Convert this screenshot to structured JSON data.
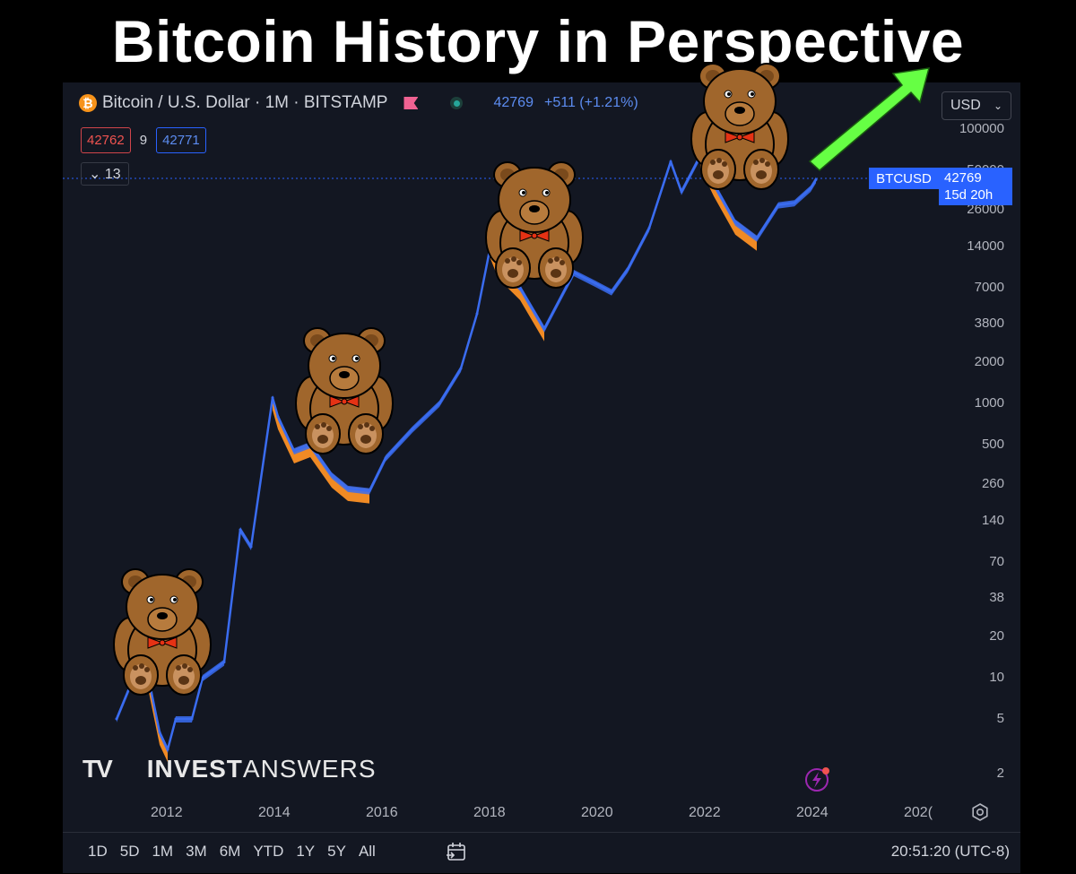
{
  "headline": "Bitcoin History in Perspective",
  "legend": {
    "icon_char": "₿",
    "symbol_name": "Bitcoin / U.S. Dollar · 1M · BITSTAMP",
    "last_price": "42769",
    "change": "+511 (+1.21%)"
  },
  "bid": "42762",
  "spread": "9",
  "ask": "42771",
  "indicators_toggle": "13",
  "currency": "USD",
  "last_label": {
    "symbol": "BTCUSD",
    "price": "42769",
    "countdown": "15d 20h"
  },
  "watermark": {
    "bold": "INVEST",
    "regular": "ANSWERS",
    "logo": "TV"
  },
  "ranges": [
    "1D",
    "5D",
    "1M",
    "3M",
    "6M",
    "YTD",
    "1Y",
    "5Y",
    "All"
  ],
  "clock": "20:51:20 (UTC-8)",
  "colors": {
    "line": "#3a6cf0",
    "bear_fill": "#f08a24",
    "arrow": "#66ff44",
    "panel": "#131722"
  },
  "chart_data": {
    "type": "line",
    "title": "Bitcoin History in Perspective",
    "scale": "log",
    "grid": false,
    "xlabel": "",
    "ylabel": "",
    "x_ticks": [
      "2012",
      "2014",
      "2016",
      "2018",
      "2020",
      "2022",
      "2024",
      "202("
    ],
    "y_ticks": [
      "100000",
      "50000",
      "26000",
      "14000",
      "7000",
      "3800",
      "2000",
      "1000",
      "500",
      "260",
      "140",
      "70",
      "38",
      "20",
      "10",
      "5",
      "2"
    ],
    "series": [
      {
        "name": "BTCUSD",
        "x": [
          2011.0,
          2011.5,
          2011.8,
          2011.95,
          2012.1,
          2012.4,
          2012.6,
          2013.0,
          2013.3,
          2013.5,
          2013.9,
          2014.0,
          2014.3,
          2014.6,
          2015.0,
          2015.3,
          2015.7,
          2016.0,
          2016.5,
          2017.0,
          2017.4,
          2017.7,
          2017.95,
          2018.1,
          2018.5,
          2018.95,
          2019.5,
          2019.9,
          2020.2,
          2020.5,
          2020.9,
          2021.3,
          2021.5,
          2021.85,
          2022.1,
          2022.5,
          2022.9,
          2023.3,
          2023.6,
          2023.9,
          2024.0
        ],
        "values": [
          5,
          15,
          4,
          3,
          5,
          5,
          10,
          13,
          120,
          90,
          1100,
          800,
          450,
          500,
          300,
          240,
          230,
          400,
          650,
          1000,
          1800,
          4500,
          14000,
          10000,
          7000,
          3500,
          9000,
          7500,
          6500,
          9500,
          19000,
          58000,
          35000,
          64000,
          40000,
          21000,
          16000,
          28000,
          29000,
          37000,
          42769
        ]
      }
    ],
    "bear_markets": [
      [
        2011.5,
        2011.95
      ],
      [
        2013.9,
        2015.7
      ],
      [
        2017.95,
        2018.95
      ],
      [
        2021.85,
        2022.9
      ]
    ],
    "last": 42769
  }
}
